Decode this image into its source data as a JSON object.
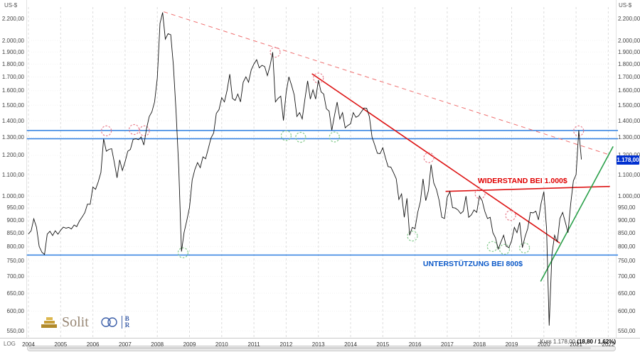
{
  "meta": {
    "axis_unit": "US-$",
    "scale_label": "LOG"
  },
  "status": {
    "kurs_label": "Kurs 1.178,00 ",
    "change_label": "(18,80 / 1,62%)"
  },
  "price_tag": {
    "value": 1178,
    "label": "1.178,00",
    "bg": "#0030d0"
  },
  "annotations": {
    "resistance": {
      "text": "WIDERSTAND BEI 1.000$",
      "color": "#e00000",
      "x": 2017.95,
      "v": 1068
    },
    "support": {
      "text": "UNTERSTÜTZUNG BEI  800$",
      "color": "#0a58c8",
      "x": 2016.25,
      "v": 738
    }
  },
  "logos": {
    "solit": "Solit",
    "stack_top": "B",
    "stack_bottom": "R"
  },
  "chart_data": {
    "type": "line",
    "title": "",
    "ylabel": "US-$",
    "y_scale": "log",
    "y_range": [
      533,
      2320
    ],
    "x_range": [
      2003.95,
      2022.3
    ],
    "x_axis_years": [
      2004,
      2005,
      2006,
      2007,
      2008,
      2009,
      2010,
      2011,
      2012,
      2013,
      2014,
      2015,
      2016,
      2017,
      2018,
      2019,
      2020,
      2021,
      2022
    ],
    "y_ticks": [
      {
        "v": 2200,
        "label": "2.200,00"
      },
      {
        "v": 2000,
        "label": "2.000,00"
      },
      {
        "v": 1900,
        "label": "1.900,00"
      },
      {
        "v": 1800,
        "label": "1.800,00"
      },
      {
        "v": 1700,
        "label": "1.700,00"
      },
      {
        "v": 1600,
        "label": "1.600,00"
      },
      {
        "v": 1500,
        "label": "1.500,00"
      },
      {
        "v": 1400,
        "label": "1.400,00"
      },
      {
        "v": 1300,
        "label": "1.300,00"
      },
      {
        "v": 1200,
        "label": "1.200,00"
      },
      {
        "v": 1100,
        "label": "1.100,00"
      },
      {
        "v": 1000,
        "label": "1.000,00"
      },
      {
        "v": 950,
        "label": "950,00"
      },
      {
        "v": 900,
        "label": "900,00"
      },
      {
        "v": 850,
        "label": "850,00"
      },
      {
        "v": 800,
        "label": "800,00"
      },
      {
        "v": 750,
        "label": "750,00"
      },
      {
        "v": 700,
        "label": "700,00"
      },
      {
        "v": 650,
        "label": "650,00"
      },
      {
        "v": 600,
        "label": "600,00"
      },
      {
        "v": 550,
        "label": "550,00"
      }
    ],
    "x_start": 2004.0,
    "x_step_years": 0.083333,
    "series": [
      {
        "name": "Kurs",
        "color": "#141414",
        "values": [
          846,
          858,
          905,
          872,
          800,
          780,
          772,
          845,
          856,
          840,
          858,
          845,
          860,
          872,
          868,
          871,
          865,
          880,
          874,
          896,
          912,
          930,
          966,
          965,
          1042,
          1032,
          1066,
          1112,
          1292,
          1222,
          1232,
          1236,
          1162,
          1086,
          1176,
          1122,
          1166,
          1222,
          1232,
          1288,
          1292,
          1286,
          1302,
          1256,
          1352,
          1426,
          1456,
          1522,
          1692,
          2158,
          2265,
          2012,
          2062,
          2052,
          1792,
          1456,
          1132,
          782,
          852,
          898,
          952,
          1076,
          1126,
          1162,
          1136,
          1192,
          1182,
          1236,
          1296,
          1326,
          1446,
          1471,
          1551,
          1522,
          1601,
          1721,
          1546,
          1532,
          1576,
          1522,
          1661,
          1701,
          1661,
          1755,
          1801,
          1836,
          1771,
          1791,
          1781,
          1711,
          1786,
          1898,
          1522,
          1546,
          1561,
          1401,
          1586,
          1701,
          1641,
          1571,
          1426,
          1451,
          1411,
          1541,
          1671,
          1541,
          1606,
          1541,
          1676,
          1591,
          1576,
          1476,
          1461,
          1341,
          1431,
          1521,
          1411,
          1451,
          1356,
          1371,
          1381,
          1451,
          1421,
          1431,
          1456,
          1481,
          1479,
          1426,
          1301,
          1256,
          1211,
          1209,
          1241,
          1186,
          1141,
          1139,
          1111,
          1081,
          986,
          1011,
          911,
          991,
          841,
          871,
          866,
          931,
          976,
          1081,
          981,
          1026,
          1151,
          1061,
          1031,
          981,
          911,
          906,
          996,
          1021,
          951,
          949,
          941,
          926,
          936,
          1001,
          911,
          921,
          941,
          931,
          1001,
          981,
          936,
          906,
          911,
          851,
          831,
          791,
          816,
          841,
          801,
          796,
          821,
          871,
          851,
          891,
          796,
          836,
          866,
          931,
          929,
          936,
          901,
          971,
          1021,
          866,
          563,
          771,
          841,
          816,
          906,
          931,
          891,
          851,
          966,
          1071,
          1101,
          1341,
          1178
        ]
      }
    ],
    "lines": [
      {
        "id": "resistance-zone-top",
        "x1": 2003.95,
        "v1": 1340,
        "x2": 2022.3,
        "v2": 1340,
        "color": "#2f7fe0",
        "width": 1.5,
        "dash": ""
      },
      {
        "id": "resistance-zone-bottom",
        "x1": 2003.95,
        "v1": 1292,
        "x2": 2022.3,
        "v2": 1292,
        "color": "#2f7fe0",
        "width": 1.5,
        "dash": ""
      },
      {
        "id": "support-800-line",
        "x1": 2003.95,
        "v1": 770,
        "x2": 2022.3,
        "v2": 770,
        "color": "#2f7fe0",
        "width": 1.5,
        "dash": ""
      },
      {
        "id": "downtrend-dashed",
        "x1": 2008.2,
        "v1": 2272,
        "x2": 2022.0,
        "v2": 1205,
        "color": "#ef7070",
        "width": 1,
        "dash": "6,5"
      },
      {
        "id": "downtrend-solid",
        "x1": 2012.8,
        "v1": 1725,
        "x2": 2020.5,
        "v2": 812,
        "color": "#dd1414",
        "width": 1.6,
        "dash": ""
      },
      {
        "id": "resistance-1000-line",
        "x1": 2016.95,
        "v1": 1022,
        "x2": 2022.05,
        "v2": 1045,
        "color": "#dd1414",
        "width": 1.6,
        "dash": ""
      },
      {
        "id": "uptrend-green",
        "x1": 2019.9,
        "v1": 685,
        "x2": 2022.15,
        "v2": 1248,
        "color": "#2aa04a",
        "width": 1.6,
        "dash": ""
      }
    ],
    "marker_colors": {
      "resistance": "#e8808f",
      "support": "#82c98b"
    },
    "markers": [
      {
        "x": 2006.42,
        "v": 1338,
        "type": "resistance"
      },
      {
        "x": 2007.28,
        "v": 1346,
        "type": "resistance"
      },
      {
        "x": 2007.6,
        "v": 1338,
        "type": "resistance"
      },
      {
        "x": 2011.66,
        "v": 1898,
        "type": "resistance"
      },
      {
        "x": 2013.0,
        "v": 1692,
        "type": "resistance"
      },
      {
        "x": 2016.43,
        "v": 1188,
        "type": "resistance"
      },
      {
        "x": 2018.02,
        "v": 1012,
        "type": "resistance"
      },
      {
        "x": 2018.97,
        "v": 918,
        "type": "resistance"
      },
      {
        "x": 2021.08,
        "v": 1338,
        "type": "resistance"
      },
      {
        "x": 2008.8,
        "v": 778,
        "type": "support"
      },
      {
        "x": 2012.0,
        "v": 1310,
        "type": "support"
      },
      {
        "x": 2012.45,
        "v": 1300,
        "type": "support"
      },
      {
        "x": 2013.5,
        "v": 1302,
        "type": "support"
      },
      {
        "x": 2015.92,
        "v": 838,
        "type": "support"
      },
      {
        "x": 2018.4,
        "v": 800,
        "type": "support"
      },
      {
        "x": 2018.78,
        "v": 790,
        "type": "support"
      },
      {
        "x": 2019.4,
        "v": 795,
        "type": "support"
      }
    ]
  }
}
